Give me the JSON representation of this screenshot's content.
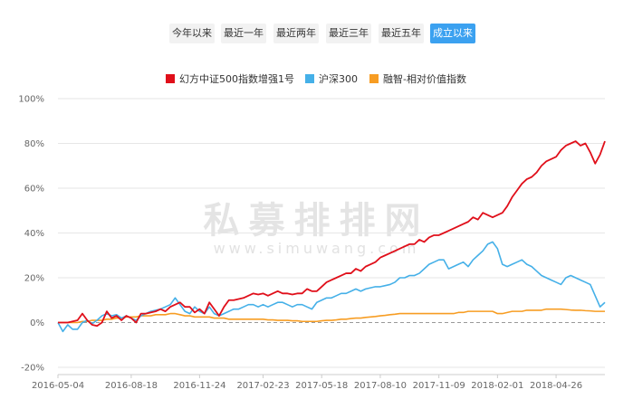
{
  "tabs": [
    {
      "label": "今年以来",
      "active": false
    },
    {
      "label": "最近一年",
      "active": false
    },
    {
      "label": "最近两年",
      "active": false
    },
    {
      "label": "最近三年",
      "active": false
    },
    {
      "label": "最近五年",
      "active": false
    },
    {
      "label": "成立以来",
      "active": true
    }
  ],
  "watermark": {
    "main": "私募排排网",
    "sub": "www.simuwang.com"
  },
  "chart_data": {
    "type": "line",
    "title": "",
    "xlabel": "",
    "ylabel": "",
    "ylim": [
      -20,
      100
    ],
    "y_ticks": [
      "100%",
      "80%",
      "60%",
      "40%",
      "20%",
      "0%",
      "-20%"
    ],
    "y_tick_values": [
      100,
      80,
      60,
      40,
      20,
      0,
      -20
    ],
    "x_tick_labels": [
      "2016-05-04",
      "2016-08-18",
      "2016-11-24",
      "2017-02-23",
      "2017-05-18",
      "2017-08-10",
      "2017-11-09",
      "2018-02-01",
      "2018-04-26"
    ],
    "x_tick_index": [
      0,
      15,
      29,
      42,
      54,
      66,
      78,
      90,
      102
    ],
    "grid": true,
    "legend_position": "top",
    "series": [
      {
        "name": "幻方中证500指数增强1号",
        "color": "#e00f1a",
        "values": [
          0,
          0,
          0,
          0.5,
          1,
          4,
          1,
          -1,
          -1.5,
          0,
          5,
          2,
          3,
          1,
          3,
          2,
          0,
          4,
          4,
          4.5,
          5,
          6,
          5,
          7,
          8,
          9,
          7,
          7,
          4.5,
          6,
          4,
          9,
          6,
          3,
          7,
          10,
          10,
          10.5,
          11,
          12,
          13,
          12.5,
          13,
          12,
          13,
          14,
          13,
          13,
          12.5,
          13,
          13,
          15,
          14,
          14,
          16,
          18,
          19,
          20,
          21,
          22,
          22,
          24,
          23,
          25,
          26,
          27,
          29,
          30,
          31,
          32,
          33,
          34,
          35,
          35,
          37,
          36,
          38,
          39,
          39,
          40,
          41,
          42,
          43,
          44,
          45,
          47,
          46,
          49,
          48,
          47,
          48,
          49,
          52,
          56,
          59,
          62,
          64,
          65,
          67,
          70,
          72,
          73,
          74,
          77,
          79,
          80,
          81,
          79,
          80,
          76,
          71,
          75,
          81
        ]
      },
      {
        "name": "沪深300",
        "color": "#45b0e8",
        "values": [
          0,
          -4,
          -1,
          -3,
          -3,
          0,
          1,
          -0.5,
          1,
          3,
          4,
          3,
          3.5,
          2,
          3,
          2,
          1,
          3,
          4,
          5,
          5.5,
          6,
          7,
          8,
          11,
          8,
          5,
          4,
          7,
          5,
          4,
          7,
          4,
          3,
          4,
          5,
          6,
          6,
          7,
          8,
          8,
          7,
          8,
          7,
          8,
          9,
          9,
          8,
          7,
          8,
          8,
          7,
          6,
          9,
          10,
          11,
          11,
          12,
          13,
          13,
          14,
          15,
          14,
          15,
          15.5,
          16,
          16,
          16.5,
          17,
          18,
          20,
          20,
          21,
          21,
          22,
          24,
          26,
          27,
          28,
          28,
          24,
          25,
          26,
          27,
          25,
          28,
          30,
          32,
          35,
          36,
          33,
          26,
          25,
          26,
          27,
          28,
          26,
          25,
          23,
          21,
          20,
          19,
          18,
          17,
          20,
          21,
          20,
          19,
          18,
          17,
          12,
          7,
          9
        ]
      },
      {
        "name": "融智-相对价值指数",
        "color": "#f79d23",
        "values": [
          0,
          0,
          0,
          0,
          0,
          0.5,
          0.5,
          1,
          1,
          1,
          1.5,
          1.5,
          2,
          2,
          2.5,
          2.5,
          2.5,
          3,
          3,
          3,
          3.5,
          3.5,
          3.5,
          4,
          4,
          3.5,
          3,
          3,
          2.5,
          2.5,
          2.5,
          2.5,
          2,
          2,
          2,
          1.5,
          1.5,
          1.5,
          1.5,
          1.5,
          1.5,
          1.5,
          1.5,
          1.2,
          1.2,
          1,
          1,
          1,
          0.8,
          0.8,
          0.5,
          0.5,
          0.5,
          0.5,
          0.8,
          1,
          1,
          1.2,
          1.5,
          1.5,
          1.8,
          2,
          2,
          2.3,
          2.5,
          2.7,
          3,
          3.2,
          3.5,
          3.7,
          4,
          4,
          4,
          4,
          4,
          4,
          4,
          4,
          4,
          4,
          4,
          4,
          4.5,
          4.5,
          5,
          5,
          5,
          5,
          5,
          5,
          4,
          4,
          4.5,
          5,
          5,
          5,
          5.5,
          5.5,
          5.5,
          5.5,
          6,
          6,
          6,
          6,
          5.8,
          5.6,
          5.5,
          5.5,
          5.3,
          5.2,
          5,
          5,
          5
        ]
      }
    ]
  }
}
